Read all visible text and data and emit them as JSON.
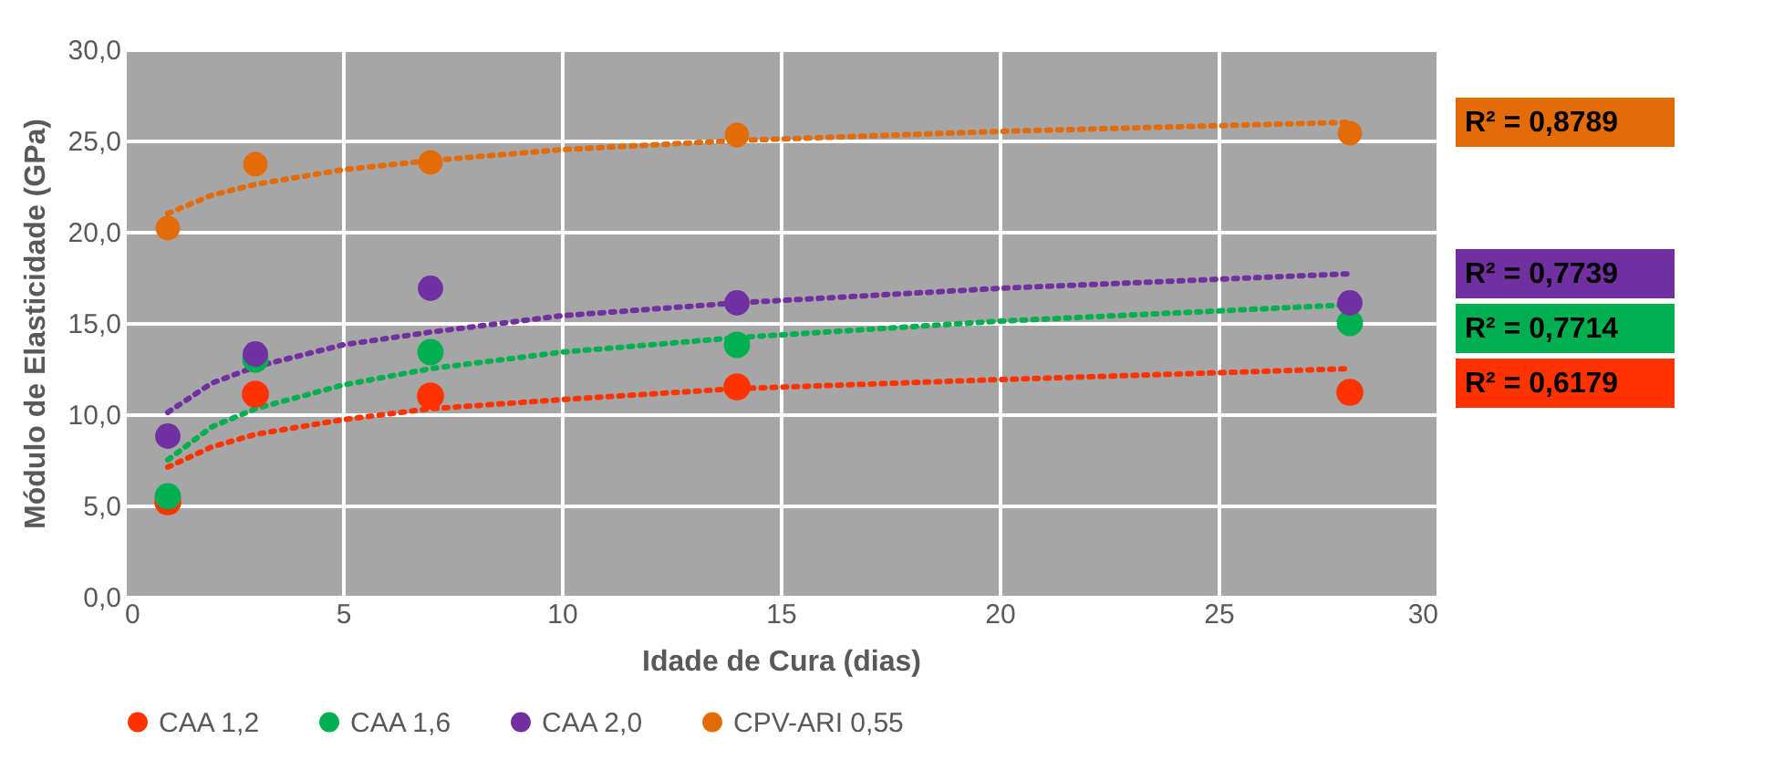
{
  "chart_data": {
    "type": "scatter",
    "xlabel": "Idade de Cura (dias)",
    "ylabel": "Módulo de Elasticidade (GPa)",
    "xlim": [
      0,
      30
    ],
    "xticks": [
      0,
      5,
      10,
      15,
      20,
      25,
      30
    ],
    "ylim": [
      0,
      30
    ],
    "yticks": [
      {
        "value": 0,
        "label": "0,0"
      },
      {
        "value": 5,
        "label": "5,0"
      },
      {
        "value": 10,
        "label": "10,0"
      },
      {
        "value": 15,
        "label": "15,0"
      },
      {
        "value": 20,
        "label": "20,0"
      },
      {
        "value": 25,
        "label": "25,0"
      },
      {
        "value": 30,
        "label": "30,0"
      }
    ],
    "grid": true,
    "legend": "bottom",
    "marker": "circle",
    "series": [
      {
        "name": "CAA 1,2",
        "color": "#ff3300",
        "x": [
          1,
          3,
          7,
          14,
          28
        ],
        "values": [
          5.2,
          11.1,
          11.0,
          11.5,
          11.2
        ]
      },
      {
        "name": "CAA 1,6",
        "color": "#00b050",
        "x": [
          1,
          3,
          7,
          14,
          28
        ],
        "values": [
          5.5,
          13.0,
          13.4,
          13.8,
          15.0
        ]
      },
      {
        "name": "CAA 2,0",
        "color": "#7030a0",
        "x": [
          1,
          3,
          7,
          14,
          28
        ],
        "values": [
          8.8,
          13.3,
          16.9,
          16.1,
          16.1
        ]
      },
      {
        "name": "CPV-ARI 0,55",
        "color": "#e36c09",
        "x": [
          1,
          3,
          7,
          14,
          28
        ],
        "values": [
          20.2,
          23.7,
          23.8,
          25.3,
          25.4
        ]
      },
      {
        "name": "R² = 0,6179",
        "color": "#ff3300",
        "type": "line",
        "marker": "none",
        "line_style": "dotted",
        "x": [
          1,
          2,
          3,
          5,
          7,
          10,
          14,
          20,
          28
        ],
        "values": [
          7.1,
          8.2,
          8.9,
          9.7,
          10.3,
          10.8,
          11.4,
          11.9,
          12.5
        ]
      },
      {
        "name": "R² = 0,7714",
        "color": "#00b050",
        "type": "line",
        "marker": "none",
        "line_style": "dotted",
        "x": [
          1,
          2,
          3,
          5,
          7,
          10,
          14,
          20,
          28
        ],
        "values": [
          7.5,
          9.3,
          10.3,
          11.6,
          12.5,
          13.4,
          14.2,
          15.1,
          16.0
        ]
      },
      {
        "name": "R² = 0,7739",
        "color": "#7030a0",
        "type": "line",
        "marker": "none",
        "line_style": "dotted",
        "x": [
          1,
          2,
          3,
          5,
          7,
          10,
          14,
          20,
          28
        ],
        "values": [
          10.1,
          11.7,
          12.6,
          13.8,
          14.5,
          15.4,
          16.1,
          16.9,
          17.7
        ]
      },
      {
        "name": "R² = 0,8789",
        "color": "#e36c09",
        "type": "line",
        "marker": "none",
        "line_style": "dotted",
        "x": [
          1,
          2,
          3,
          5,
          7,
          10,
          14,
          20,
          28
        ],
        "values": [
          21.0,
          22.0,
          22.6,
          23.4,
          23.9,
          24.5,
          25.0,
          25.5,
          26.0
        ]
      }
    ]
  }
}
